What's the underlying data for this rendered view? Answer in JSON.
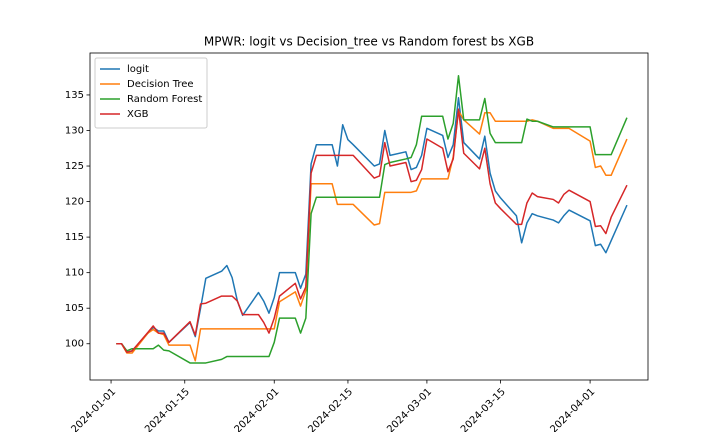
{
  "chart_data": {
    "type": "line",
    "title": "MPWR: logit vs Decision_tree vs Random forest bs XGB",
    "x": [
      "2024-01-02",
      "2024-01-03",
      "2024-01-04",
      "2024-01-05",
      "2024-01-08",
      "2024-01-09",
      "2024-01-10",
      "2024-01-11",
      "2024-01-12",
      "2024-01-16",
      "2024-01-17",
      "2024-01-18",
      "2024-01-19",
      "2024-01-22",
      "2024-01-23",
      "2024-01-24",
      "2024-01-25",
      "2024-01-26",
      "2024-01-29",
      "2024-01-30",
      "2024-01-31",
      "2024-02-01",
      "2024-02-02",
      "2024-02-05",
      "2024-02-06",
      "2024-02-07",
      "2024-02-08",
      "2024-02-09",
      "2024-02-12",
      "2024-02-13",
      "2024-02-14",
      "2024-02-15",
      "2024-02-16",
      "2024-02-20",
      "2024-02-21",
      "2024-02-22",
      "2024-02-23",
      "2024-02-26",
      "2024-02-27",
      "2024-02-28",
      "2024-02-29",
      "2024-03-01",
      "2024-03-04",
      "2024-03-05",
      "2024-03-06",
      "2024-03-07",
      "2024-03-08",
      "2024-03-11",
      "2024-03-12",
      "2024-03-13",
      "2024-03-14",
      "2024-03-15",
      "2024-03-18",
      "2024-03-19",
      "2024-03-20",
      "2024-03-21",
      "2024-03-22",
      "2024-03-25",
      "2024-03-26",
      "2024-03-27",
      "2024-03-28",
      "2024-04-01",
      "2024-04-02",
      "2024-04-03",
      "2024-04-04",
      "2024-04-05",
      "2024-04-08"
    ],
    "series": [
      {
        "name": "logit",
        "color": "#1f77b4",
        "values": [
          100,
          100,
          98.8,
          99,
          101.5,
          102.3,
          101.8,
          101.8,
          100.2,
          103,
          101,
          105,
          109.2,
          110.2,
          111,
          109.3,
          106,
          104,
          107.2,
          106,
          104.3,
          106.5,
          110,
          110,
          107.8,
          109.8,
          125.3,
          128,
          128,
          125,
          130.8,
          128.7,
          128,
          125,
          125.3,
          130,
          126.5,
          127,
          124.5,
          124.8,
          126.5,
          130.3,
          129.3,
          126.2,
          128,
          134.6,
          128.3,
          126,
          129.2,
          124,
          121.5,
          120.5,
          118,
          114.2,
          117,
          118.3,
          118,
          117.4,
          117,
          118,
          118.8,
          117.3,
          113.8,
          114,
          112.8,
          114.5,
          119.5
        ]
      },
      {
        "name": "Decision Tree",
        "color": "#ff7f0e",
        "values": [
          100,
          100,
          98.7,
          98.7,
          101.5,
          102,
          101.5,
          101.3,
          99.8,
          99.8,
          97.6,
          102.1,
          102.1,
          102.1,
          102.1,
          102.1,
          102.1,
          102.1,
          102.1,
          102.1,
          102.1,
          102.1,
          105.9,
          107.3,
          105.3,
          107.5,
          122.5,
          122.5,
          122.5,
          119.6,
          119.6,
          119.6,
          119.6,
          116.7,
          116.9,
          121.3,
          121.3,
          121.3,
          121.3,
          121.5,
          123.2,
          123.2,
          123.2,
          123.2,
          126.3,
          132.8,
          131.5,
          129.5,
          132.5,
          132.5,
          131.3,
          131.3,
          131.3,
          131.3,
          131.3,
          131.5,
          131.3,
          130.3,
          130.3,
          130.3,
          130.3,
          128.5,
          124.8,
          125,
          123.7,
          123.7,
          128.8
        ]
      },
      {
        "name": "Random Forest",
        "color": "#2ca02c",
        "values": [
          100,
          100,
          99,
          99.3,
          99.3,
          99.3,
          99.8,
          99.1,
          99,
          97.3,
          97.3,
          97.3,
          97.3,
          97.8,
          98.2,
          98.2,
          98.2,
          98.2,
          98.2,
          98.2,
          98.2,
          100.2,
          103.6,
          103.6,
          101.5,
          103.6,
          118.3,
          120.6,
          120.6,
          120.6,
          120.6,
          120.6,
          120.6,
          120.6,
          120.6,
          125.2,
          125.5,
          126,
          126.2,
          128,
          132,
          132,
          132,
          128.8,
          131,
          137.7,
          131.5,
          131.5,
          134.5,
          129.6,
          128.3,
          128.3,
          128.3,
          128.3,
          131.6,
          131.3,
          131.3,
          130.5,
          130.5,
          130.5,
          130.5,
          130.5,
          126.6,
          126.6,
          126.6,
          126.6,
          131.8
        ]
      },
      {
        "name": "XGB",
        "color": "#d62728",
        "values": [
          100,
          100,
          98.8,
          99,
          101.6,
          102.5,
          101.5,
          101.5,
          100.2,
          103.1,
          101.2,
          105.6,
          105.7,
          106.7,
          106.7,
          106.7,
          106,
          104.1,
          104.1,
          103,
          101.5,
          103.6,
          106.7,
          108.5,
          106.3,
          108,
          124,
          126.5,
          126.5,
          126.5,
          126.5,
          126.5,
          126.5,
          123.3,
          123.6,
          128.3,
          125,
          125.5,
          122.8,
          123,
          124.5,
          128.8,
          127.5,
          124.2,
          126,
          133,
          126.8,
          124.6,
          127.5,
          122.5,
          119.8,
          119,
          116.8,
          116.8,
          119.8,
          121.2,
          120.7,
          120.3,
          119.8,
          121,
          121.6,
          120,
          116.5,
          116.6,
          115.5,
          117.8,
          122.3
        ]
      }
    ],
    "xlim": [
      "2023-12-28",
      "2024-04-12"
    ],
    "xticks": [
      "2024-01-01",
      "2024-01-15",
      "2024-02-01",
      "2024-02-15",
      "2024-03-01",
      "2024-03-15",
      "2024-04-01"
    ],
    "ylim": [
      94.9,
      140.9
    ],
    "yticks": [
      100,
      105,
      110,
      115,
      120,
      125,
      130,
      135
    ],
    "grid": false,
    "legend": "upper left"
  }
}
